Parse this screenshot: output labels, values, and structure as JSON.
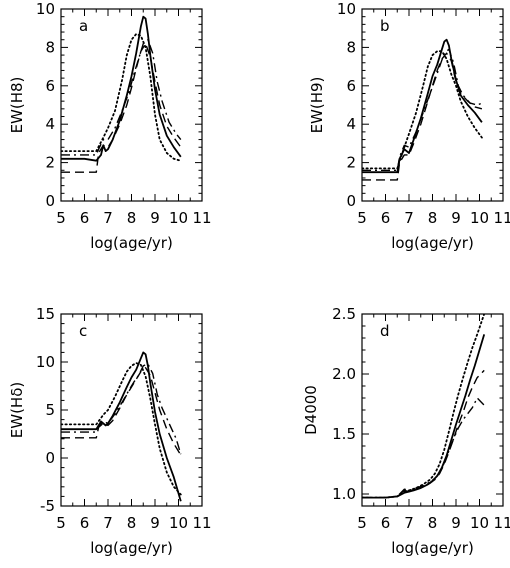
{
  "chart_data": [
    {
      "type": "line",
      "panel_label": "a",
      "xlabel": "log(age/yr)",
      "ylabel": "EW(H8)",
      "xlim": [
        5,
        11
      ],
      "ylim": [
        0,
        10
      ],
      "xticks": [
        5,
        6,
        7,
        8,
        9,
        10,
        11
      ],
      "yticks": [
        0,
        2,
        4,
        6,
        8,
        10
      ],
      "grid": false,
      "series": [
        {
          "style": "solid",
          "x": [
            5.0,
            6.0,
            6.5,
            6.7,
            6.8,
            6.9,
            7.0,
            7.2,
            7.5,
            7.8,
            8.0,
            8.2,
            8.4,
            8.5,
            8.6,
            8.7,
            8.8,
            9.0,
            9.2,
            9.5,
            9.8,
            10.1
          ],
          "y": [
            2.2,
            2.2,
            2.1,
            2.4,
            2.9,
            2.6,
            2.7,
            3.2,
            4.2,
            5.5,
            6.5,
            7.7,
            9.1,
            9.6,
            9.5,
            8.7,
            7.6,
            5.8,
            4.5,
            3.4,
            2.8,
            2.3
          ]
        },
        {
          "style": "dotted",
          "x": [
            5.0,
            6.0,
            6.5,
            6.8,
            7.0,
            7.3,
            7.6,
            7.8,
            8.0,
            8.2,
            8.4,
            8.6,
            8.8,
            9.0,
            9.2,
            9.5,
            9.8,
            10.1
          ],
          "y": [
            2.6,
            2.6,
            2.6,
            3.3,
            3.8,
            4.7,
            6.3,
            7.6,
            8.4,
            8.7,
            8.6,
            8.0,
            6.5,
            4.5,
            3.2,
            2.5,
            2.2,
            2.1
          ]
        },
        {
          "style": "dashed",
          "x": [
            5.0,
            6.0,
            6.5,
            6.6,
            6.8,
            7.0,
            7.2,
            7.5,
            7.8,
            8.0,
            8.2,
            8.4,
            8.6,
            8.8,
            9.0,
            9.2,
            9.5,
            9.8,
            10.1
          ],
          "y": [
            1.5,
            1.5,
            1.5,
            2.5,
            2.9,
            2.8,
            3.2,
            4.0,
            5.0,
            5.9,
            6.9,
            7.8,
            8.2,
            7.5,
            6.2,
            5.0,
            3.9,
            3.3,
            2.8
          ]
        },
        {
          "style": "dashdot",
          "x": [
            5.0,
            6.0,
            6.5,
            6.6,
            6.8,
            7.0,
            7.3,
            7.6,
            7.9,
            8.1,
            8.3,
            8.5,
            8.7,
            8.9,
            9.1,
            9.3,
            9.6,
            9.9,
            10.1
          ],
          "y": [
            2.4,
            2.4,
            2.4,
            2.7,
            3.2,
            3.2,
            3.8,
            4.7,
            5.7,
            6.6,
            7.4,
            8.2,
            8.4,
            7.7,
            6.2,
            5.2,
            4.1,
            3.5,
            3.2
          ]
        }
      ]
    },
    {
      "type": "line",
      "panel_label": "b",
      "xlabel": "log(age/yr)",
      "ylabel": "EW(H9)",
      "xlim": [
        5,
        11
      ],
      "ylim": [
        0,
        10
      ],
      "xticks": [
        5,
        6,
        7,
        8,
        9,
        10,
        11
      ],
      "yticks": [
        0,
        2,
        4,
        6,
        8,
        10
      ],
      "grid": false,
      "series": [
        {
          "style": "solid",
          "x": [
            5.0,
            6.0,
            6.5,
            6.6,
            6.8,
            7.0,
            7.2,
            7.5,
            7.8,
            8.0,
            8.2,
            8.4,
            8.5,
            8.6,
            8.7,
            8.8,
            9.0,
            9.2,
            9.5,
            9.8,
            10.1
          ],
          "y": [
            1.5,
            1.5,
            1.5,
            2.2,
            2.7,
            2.5,
            3.2,
            4.3,
            5.6,
            6.5,
            7.1,
            7.9,
            8.3,
            8.4,
            8.1,
            7.4,
            6.3,
            5.5,
            5.0,
            4.6,
            4.1
          ]
        },
        {
          "style": "dotted",
          "x": [
            5.0,
            6.0,
            6.5,
            6.8,
            7.0,
            7.3,
            7.6,
            7.8,
            8.0,
            8.2,
            8.4,
            8.6,
            8.8,
            9.0,
            9.2,
            9.5,
            9.8,
            10.1
          ],
          "y": [
            1.7,
            1.7,
            1.7,
            2.8,
            3.5,
            4.6,
            6.0,
            7.0,
            7.6,
            7.8,
            7.8,
            7.4,
            6.6,
            6.0,
            5.2,
            4.4,
            3.8,
            3.3
          ]
        },
        {
          "style": "dashed",
          "x": [
            5.0,
            6.0,
            6.5,
            6.6,
            6.8,
            7.0,
            7.2,
            7.5,
            7.8,
            8.0,
            8.2,
            8.4,
            8.6,
            8.8,
            9.0,
            9.2,
            9.5,
            9.8,
            10.1
          ],
          "y": [
            1.1,
            1.1,
            1.1,
            2.0,
            2.4,
            2.4,
            3.0,
            4.0,
            5.2,
            6.0,
            6.8,
            7.4,
            7.7,
            7.3,
            6.2,
            5.6,
            5.2,
            4.9,
            4.8
          ]
        },
        {
          "style": "dashdot",
          "x": [
            5.0,
            6.0,
            6.5,
            6.6,
            6.8,
            7.0,
            7.3,
            7.6,
            7.9,
            8.1,
            8.3,
            8.5,
            8.7,
            8.9,
            9.1,
            9.3,
            9.6,
            9.9,
            10.1
          ],
          "y": [
            1.6,
            1.6,
            1.6,
            2.3,
            2.9,
            2.8,
            3.6,
            4.6,
            5.6,
            6.3,
            7.0,
            7.7,
            7.9,
            7.2,
            6.0,
            5.5,
            5.1,
            5.0,
            5.1
          ]
        }
      ]
    },
    {
      "type": "line",
      "panel_label": "c",
      "xlabel": "log(age/yr)",
      "ylabel": "EW(Hδ)",
      "xlim": [
        5,
        11
      ],
      "ylim": [
        -5,
        15
      ],
      "xticks": [
        5,
        6,
        7,
        8,
        9,
        10,
        11
      ],
      "yticks": [
        -5,
        0,
        5,
        10,
        15
      ],
      "grid": false,
      "series": [
        {
          "style": "solid",
          "x": [
            5.0,
            6.0,
            6.5,
            6.7,
            6.9,
            7.0,
            7.2,
            7.5,
            7.8,
            8.0,
            8.2,
            8.4,
            8.5,
            8.6,
            8.7,
            8.8,
            9.0,
            9.2,
            9.5,
            9.8,
            10.1
          ],
          "y": [
            3.0,
            3.0,
            3.0,
            3.8,
            3.4,
            3.6,
            4.4,
            5.8,
            7.4,
            8.4,
            9.2,
            10.4,
            11.0,
            10.8,
            9.6,
            7.8,
            4.8,
            2.5,
            0.0,
            -2.0,
            -4.5
          ]
        },
        {
          "style": "dotted",
          "x": [
            5.0,
            6.0,
            6.5,
            6.8,
            7.0,
            7.3,
            7.6,
            7.8,
            8.0,
            8.2,
            8.4,
            8.6,
            8.8,
            9.0,
            9.2,
            9.5,
            9.8,
            10.1
          ],
          "y": [
            3.5,
            3.5,
            3.5,
            4.5,
            5.0,
            6.4,
            8.0,
            9.0,
            9.6,
            9.9,
            9.7,
            8.5,
            6.2,
            3.5,
            1.0,
            -1.5,
            -3.0,
            -3.8
          ]
        },
        {
          "style": "dashed",
          "x": [
            5.0,
            6.0,
            6.5,
            6.6,
            6.8,
            7.0,
            7.2,
            7.5,
            7.8,
            8.0,
            8.2,
            8.4,
            8.6,
            8.8,
            9.0,
            9.2,
            9.5,
            9.8,
            10.1
          ],
          "y": [
            2.1,
            2.1,
            2.1,
            3.2,
            3.6,
            3.4,
            3.9,
            5.2,
            6.6,
            7.4,
            8.2,
            9.0,
            9.4,
            8.6,
            6.8,
            5.0,
            3.0,
            1.5,
            0.3
          ]
        },
        {
          "style": "dashdot",
          "x": [
            5.0,
            6.0,
            6.5,
            6.6,
            6.8,
            7.0,
            7.3,
            7.6,
            7.9,
            8.1,
            8.3,
            8.5,
            8.7,
            8.9,
            9.1,
            9.3,
            9.6,
            9.9,
            10.1
          ],
          "y": [
            2.7,
            2.7,
            2.7,
            3.3,
            3.8,
            3.6,
            4.6,
            5.8,
            7.1,
            7.9,
            8.6,
            9.6,
            9.8,
            8.8,
            6.6,
            5.2,
            3.6,
            2.0,
            0.4
          ]
        }
      ]
    },
    {
      "type": "line",
      "panel_label": "d",
      "xlabel": "log(age/yr)",
      "ylabel": "D4000",
      "xlim": [
        5,
        11
      ],
      "ylim": [
        0.9,
        2.5
      ],
      "xticks": [
        5,
        6,
        7,
        8,
        9,
        10,
        11
      ],
      "yticks": [
        1.0,
        1.5,
        2.0,
        2.5
      ],
      "ytick_labels": [
        "1.0",
        "1.5",
        "2.0",
        "2.5"
      ],
      "grid": false,
      "series": [
        {
          "style": "solid",
          "x": [
            5.0,
            6.0,
            6.5,
            6.8,
            7.0,
            7.2,
            7.5,
            7.8,
            8.0,
            8.2,
            8.4,
            8.6,
            8.8,
            9.0,
            9.2,
            9.4,
            9.6,
            9.8,
            10.0,
            10.2
          ],
          "y": [
            0.97,
            0.97,
            0.98,
            1.01,
            1.02,
            1.03,
            1.05,
            1.08,
            1.11,
            1.15,
            1.22,
            1.32,
            1.45,
            1.58,
            1.7,
            1.82,
            1.95,
            2.07,
            2.2,
            2.33
          ]
        },
        {
          "style": "dotted",
          "x": [
            5.0,
            6.0,
            6.5,
            6.8,
            7.0,
            7.3,
            7.6,
            7.9,
            8.1,
            8.3,
            8.5,
            8.7,
            8.9,
            9.1,
            9.3,
            9.5,
            9.7,
            9.9,
            10.2
          ],
          "y": [
            0.97,
            0.97,
            0.98,
            1.02,
            1.03,
            1.05,
            1.08,
            1.12,
            1.17,
            1.25,
            1.37,
            1.52,
            1.68,
            1.83,
            1.97,
            2.1,
            2.22,
            2.33,
            2.5
          ]
        },
        {
          "style": "dashed",
          "x": [
            5.0,
            6.0,
            6.5,
            6.8,
            7.0,
            7.3,
            7.6,
            7.9,
            8.1,
            8.3,
            8.5,
            8.7,
            8.9,
            9.1,
            9.3,
            9.5,
            9.7,
            9.9,
            10.2
          ],
          "y": [
            0.97,
            0.97,
            0.98,
            1.03,
            1.02,
            1.04,
            1.06,
            1.09,
            1.12,
            1.17,
            1.25,
            1.35,
            1.46,
            1.58,
            1.68,
            1.8,
            1.89,
            1.97,
            2.03
          ]
        },
        {
          "style": "dashdot",
          "x": [
            5.0,
            6.0,
            6.5,
            6.8,
            7.0,
            7.3,
            7.6,
            7.9,
            8.1,
            8.3,
            8.5,
            8.7,
            8.9,
            9.1,
            9.3,
            9.5,
            9.7,
            9.9,
            10.2
          ],
          "y": [
            0.97,
            0.97,
            0.98,
            1.04,
            1.03,
            1.05,
            1.07,
            1.1,
            1.13,
            1.18,
            1.26,
            1.36,
            1.46,
            1.55,
            1.62,
            1.67,
            1.72,
            1.8,
            1.74
          ]
        }
      ]
    }
  ]
}
